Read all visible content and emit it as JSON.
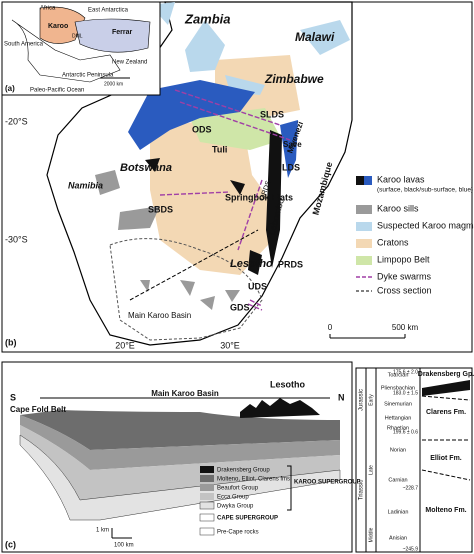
{
  "inset": {
    "label": "(a)",
    "africa": "Africa",
    "east_antarctica": "East Antarctica",
    "south_america": "South America",
    "karoo": "Karoo",
    "ferrar": "Ferrar",
    "dml": "DML",
    "new_zealand": "New Zealand",
    "antarctic_peninsula": "Antarctic Peninsula",
    "ocean": "Paleo-Pacific Ocean",
    "scale": "2000 km"
  },
  "map": {
    "label": "(b)",
    "places": [
      "Zambia",
      "Malawi",
      "Zimbabwe",
      "SLDS",
      "ODS",
      "Tuli",
      "Save",
      "Mwenezi",
      "LDS",
      "Botswana",
      "Namibia",
      "SBDS",
      "Springbok Flats",
      "Lebombo",
      "ORDS",
      "Mozambique",
      "PRDS",
      "Lesotho",
      "UDS",
      "GDS",
      "Main Karoo Basin"
    ],
    "lat": [
      "-20°S",
      "-30°S"
    ],
    "lon": [
      "20°E",
      "30°E"
    ],
    "scale": [
      "0",
      "500 km"
    ],
    "legend": [
      "Karoo lavas",
      "(surface, black/sub-surface, blue)",
      "Karoo sills",
      "Suspected Karoo magmatism",
      "Cratons",
      "Limpopo Belt",
      "Dyke swarms",
      "Cross section"
    ]
  },
  "section": {
    "label": "(c)",
    "south": "S",
    "north": "N",
    "basin": "Main Karoo Basin",
    "fold_belt": "Cape Fold Belt",
    "lesotho": "Lesotho",
    "units": [
      "Drakensberg Group",
      "Molteno, Elliot, Clarens fms",
      "Beaufort Group",
      "Ecca Group",
      "Dwyka Group"
    ],
    "karoo": "KAROO SUPERGROUP",
    "cape": "CAPE SUPERGROUP",
    "pre_cape": "Pre-Cape rocks",
    "vscale": "1 km",
    "hscale": "100 km"
  },
  "column": {
    "periods": [
      "Jurassic",
      "Triassic"
    ],
    "epochs": [
      "Early",
      "Late",
      "Middle"
    ],
    "stages": [
      "Toarcian",
      "Pliensbachian",
      "Sinemurian",
      "Hettangian",
      "Rhaetian",
      "Norian",
      "Carnian",
      "Ladinian",
      "Anisian"
    ],
    "ages": [
      "175.6 ± 2.0",
      "183.0 ± 1.5",
      "199.6 ± 0.6",
      "~228.7",
      "~245.9"
    ],
    "formations": [
      "Drakensberg Gp.",
      "Clarens Fm.",
      "Elliot Fm.",
      "Molteno Fm."
    ]
  }
}
